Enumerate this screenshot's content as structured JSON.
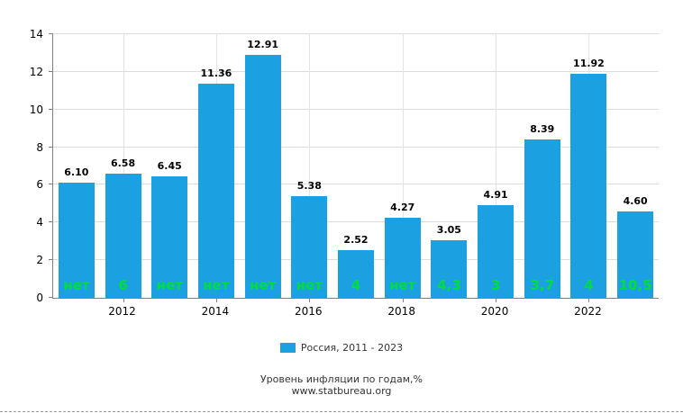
{
  "chart_data": {
    "type": "bar",
    "title": "Уровень инфляции по годам,%",
    "source": "www.statbureau.org",
    "legend": "Россия, 2011 - 2023",
    "categories": [
      "2011",
      "2012",
      "2013",
      "2014",
      "2015",
      "2016",
      "2017",
      "2018",
      "2019",
      "2020",
      "2021",
      "2022",
      "2023"
    ],
    "values": [
      6.1,
      6.58,
      6.45,
      11.36,
      12.91,
      5.38,
      2.52,
      4.27,
      3.05,
      4.91,
      8.39,
      11.92,
      4.6
    ],
    "value_labels": [
      "6.10",
      "6.58",
      "6.45",
      "11.36",
      "12.91",
      "5.38",
      "2.52",
      "4.27",
      "3.05",
      "4.91",
      "8.39",
      "11.92",
      "4.60"
    ],
    "bar_annotations": [
      "нет",
      "6",
      "нет",
      "нет",
      "нет",
      "нет",
      "4",
      "нет",
      "4,3",
      "3",
      "3,7",
      "4",
      "10,5"
    ],
    "x_tick_labels": [
      "2012",
      "2014",
      "2016",
      "2018",
      "2020",
      "2022"
    ],
    "yticks": [
      0,
      2,
      4,
      6,
      8,
      10,
      12,
      14
    ],
    "ylim": [
      0,
      14
    ],
    "bar_color": "#1ba1e2",
    "annotation_color": "#00dd3c",
    "grid": true,
    "legend_position": "bottom",
    "xlabel": "",
    "ylabel": ""
  }
}
